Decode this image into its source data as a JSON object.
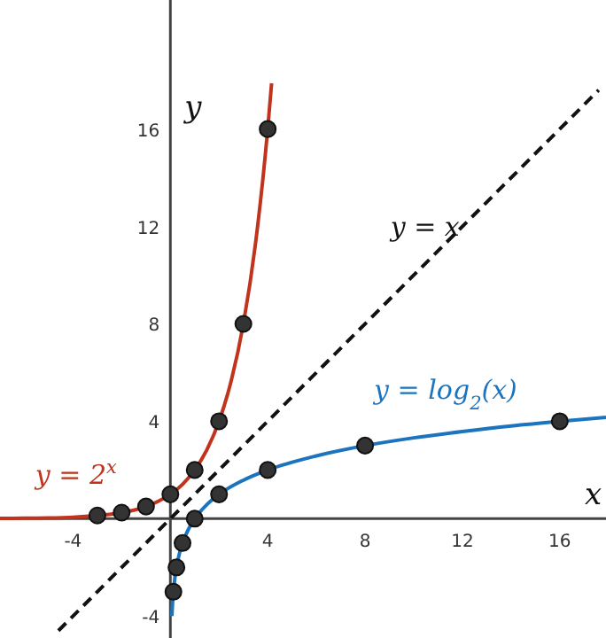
{
  "chart_data": {
    "type": "line",
    "xlabel": "x",
    "ylabel": "y",
    "xlim": [
      -7,
      17.9
    ],
    "ylim": [
      -4.9,
      21.3
    ],
    "xticks": [
      -4,
      4,
      8,
      12,
      16
    ],
    "yticks": [
      -4,
      4,
      8,
      12,
      16
    ],
    "grid": false,
    "series": [
      {
        "name": "y = 2$^{x}$",
        "type": "line",
        "color": "#c0341d",
        "line_style": "solid",
        "marker": "none",
        "x": [
          -7,
          -6,
          -5,
          -4,
          -3,
          -2.5,
          -2,
          -1.5,
          -1,
          -0.5,
          0,
          0.5,
          1,
          1.5,
          2,
          2.5,
          3,
          3.5,
          4,
          4.16
        ],
        "values": [
          0.01,
          0.02,
          0.03,
          0.06,
          0.13,
          0.18,
          0.25,
          0.35,
          0.5,
          0.71,
          1,
          1.41,
          2,
          2.83,
          4,
          5.66,
          8,
          11.31,
          16,
          17.88
        ]
      },
      {
        "name": "y = log$_{2}$(x)",
        "type": "line",
        "color": "#1c74bf",
        "line_style": "solid",
        "marker": "none",
        "x": [
          0.0625,
          0.09,
          0.125,
          0.1875,
          0.25,
          0.375,
          0.5,
          0.75,
          1,
          1.5,
          2,
          3,
          4,
          6,
          8,
          10,
          12,
          14,
          16,
          17.9
        ],
        "values": [
          -4,
          -3.47,
          -3,
          -2.42,
          -2,
          -1.42,
          -1,
          -0.42,
          0,
          0.58,
          1,
          1.58,
          2,
          2.58,
          3,
          3.32,
          3.58,
          3.81,
          4,
          4.16
        ]
      },
      {
        "name": "y = x",
        "type": "line",
        "color": "#111111",
        "line_style": "dashed",
        "marker": "none",
        "x": [
          -4.6,
          17.6
        ],
        "values": [
          -4.6,
          17.6
        ]
      },
      {
        "type": "scatter",
        "color": "#333333",
        "marker": "circle",
        "x": [
          -3,
          -2,
          -1,
          0,
          1,
          2,
          3,
          4
        ],
        "values": [
          0.13,
          0.25,
          0.5,
          1,
          2,
          4,
          8,
          16
        ]
      },
      {
        "type": "scatter",
        "color": "#333333",
        "marker": "circle",
        "x": [
          0.125,
          0.25,
          0.5,
          1,
          2,
          4,
          8,
          16
        ],
        "values": [
          -3,
          -2,
          -1,
          0,
          1,
          2,
          3,
          4
        ]
      }
    ]
  }
}
